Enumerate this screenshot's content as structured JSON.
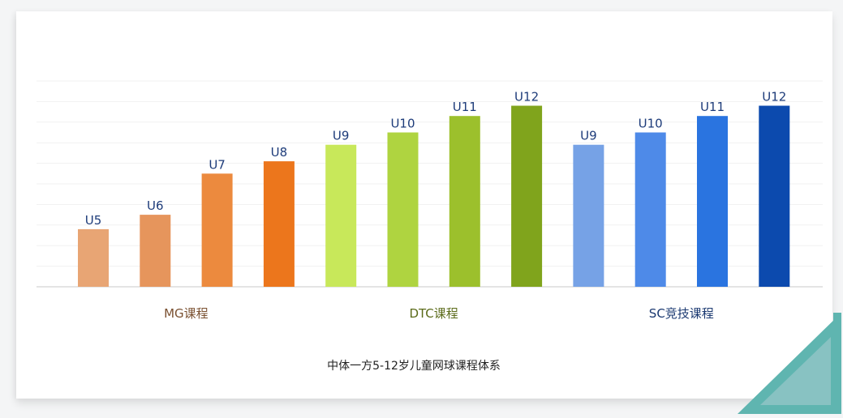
{
  "chart_data": {
    "type": "bar",
    "title": "中体一方5-12岁儿童网球课程体系",
    "xlabel": "",
    "ylabel": "",
    "ylim": [
      0,
      10
    ],
    "grid": true,
    "groups": [
      {
        "name": "MG课程",
        "color": "#7a5030",
        "bars": [
          {
            "label": "U5",
            "value": 2.8,
            "color": "#e8a574"
          },
          {
            "label": "U6",
            "value": 3.5,
            "color": "#e6955c"
          },
          {
            "label": "U7",
            "value": 5.5,
            "color": "#ec8a3e"
          },
          {
            "label": "U8",
            "value": 6.1,
            "color": "#ec761c"
          }
        ]
      },
      {
        "name": "DTC课程",
        "color": "#5a6a18",
        "bars": [
          {
            "label": "U9",
            "value": 6.9,
            "color": "#c8e85a"
          },
          {
            "label": "U10",
            "value": 7.5,
            "color": "#afd440"
          },
          {
            "label": "U11",
            "value": 8.3,
            "color": "#9cc02c"
          },
          {
            "label": "U12",
            "value": 8.8,
            "color": "#80a41c"
          }
        ]
      },
      {
        "name": "SC竞技课程",
        "color": "#1a3870",
        "bars": [
          {
            "label": "U9",
            "value": 6.9,
            "color": "#76a2e6"
          },
          {
            "label": "U10",
            "value": 7.5,
            "color": "#4e8ae8"
          },
          {
            "label": "U11",
            "value": 8.3,
            "color": "#2a74e0"
          },
          {
            "label": "U12",
            "value": 8.8,
            "color": "#0c4aae"
          }
        ]
      }
    ]
  },
  "colors": {
    "bar_label": "#1e3c7a",
    "title_text": "#222222",
    "corner_teal": "#5fb5b0",
    "corner_fill": "#88c2c2"
  }
}
